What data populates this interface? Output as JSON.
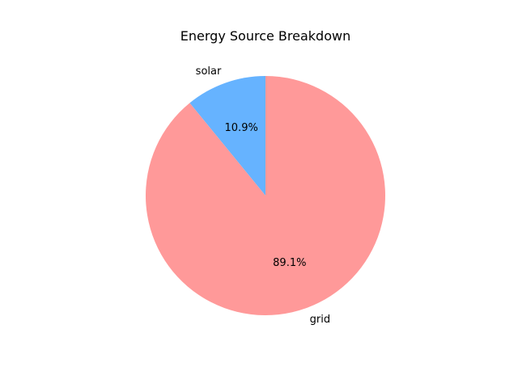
{
  "chart_data": {
    "type": "pie",
    "title": "Energy Source Breakdown",
    "slices": [
      {
        "label": "solar",
        "value": 10.9,
        "pct_label": "10.9%",
        "color": "#66b3ff"
      },
      {
        "label": "grid",
        "value": 89.1,
        "pct_label": "89.1%",
        "color": "#ff9999"
      }
    ],
    "start_angle_deg": 90,
    "direction": "counterclockwise",
    "legend": "none"
  }
}
